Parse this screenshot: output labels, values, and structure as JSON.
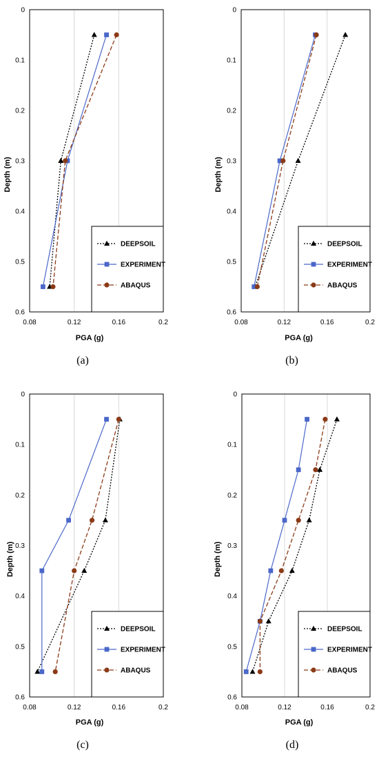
{
  "chart_data": [
    {
      "type": "line",
      "panel": "a",
      "caption": "(a)",
      "xlabel": "PGA (g)",
      "ylabel": "Depth (m)",
      "xlim": [
        0.08,
        0.2
      ],
      "ylim": [
        0,
        0.6
      ],
      "y_inverted": true,
      "x_ticks": [
        0.08,
        0.12,
        0.16,
        0.2
      ],
      "x_tick_labels": [
        "0.08",
        "0.12",
        "0.16",
        "0.2"
      ],
      "y_ticks": [
        0,
        0.1,
        0.2,
        0.3,
        0.4,
        0.5,
        0.6
      ],
      "y_tick_labels": [
        "0",
        "0.1",
        "0.2",
        "0.3",
        "0.4",
        "0.5",
        "0.6"
      ],
      "grid": "vertical",
      "legend_position": "bottom-right",
      "series": [
        {
          "name": "DEEPSOIL",
          "color": "#000000",
          "marker": "triangle",
          "dash": "dotted",
          "points": [
            [
              0.138,
              0.05
            ],
            [
              0.108,
              0.3
            ],
            [
              0.098,
              0.55
            ]
          ]
        },
        {
          "name": "EXPERIMENT",
          "color": "#4a67c9",
          "marker": "square",
          "dash": "solid",
          "points": [
            [
              0.149,
              0.05
            ],
            [
              0.114,
              0.3
            ],
            [
              0.092,
              0.55
            ]
          ]
        },
        {
          "name": "ABAQUS",
          "color": "#8b3a17",
          "marker": "circle",
          "dash": "dashed",
          "points": [
            [
              0.158,
              0.05
            ],
            [
              0.112,
              0.3
            ],
            [
              0.101,
              0.55
            ]
          ]
        }
      ]
    },
    {
      "type": "line",
      "panel": "b",
      "caption": "(b)",
      "xlabel": "PGA (g)",
      "ylabel": "Depth (m)",
      "xlim": [
        0.08,
        0.2
      ],
      "ylim": [
        0,
        0.6
      ],
      "y_inverted": true,
      "x_ticks": [
        0.08,
        0.12,
        0.16,
        0.2
      ],
      "x_tick_labels": [
        "0.08",
        "0.12",
        "0.16",
        "0.2"
      ],
      "y_ticks": [
        0,
        0.1,
        0.2,
        0.3,
        0.4,
        0.5,
        0.6
      ],
      "y_tick_labels": [
        "0",
        "0.1",
        "0.2",
        "0.3",
        "0.4",
        "0.5",
        "0.6"
      ],
      "grid": "vertical",
      "legend_position": "bottom-right",
      "series": [
        {
          "name": "DEEPSOIL",
          "color": "#000000",
          "marker": "triangle",
          "dash": "dotted",
          "points": [
            [
              0.177,
              0.05
            ],
            [
              0.133,
              0.3
            ],
            [
              0.093,
              0.55
            ]
          ]
        },
        {
          "name": "EXPERIMENT",
          "color": "#4a67c9",
          "marker": "square",
          "dash": "solid",
          "points": [
            [
              0.149,
              0.05
            ],
            [
              0.116,
              0.3
            ],
            [
              0.092,
              0.55
            ]
          ]
        },
        {
          "name": "ABAQUS",
          "color": "#8b3a17",
          "marker": "circle",
          "dash": "dashed",
          "points": [
            [
              0.15,
              0.05
            ],
            [
              0.119,
              0.3
            ],
            [
              0.095,
              0.55
            ]
          ]
        }
      ]
    },
    {
      "type": "line",
      "panel": "c",
      "caption": "(c)",
      "xlabel": "PGA (g)",
      "ylabel": "Depth (m)",
      "xlim": [
        0.08,
        0.2
      ],
      "ylim": [
        0,
        0.6
      ],
      "y_inverted": true,
      "x_ticks": [
        0.08,
        0.12,
        0.16,
        0.2
      ],
      "x_tick_labels": [
        "0.08",
        "0.12",
        "0.16",
        "0.2"
      ],
      "y_ticks": [
        0,
        0.1,
        0.2,
        0.3,
        0.4,
        0.5,
        0.6
      ],
      "y_tick_labels": [
        "0",
        "0.1",
        "0.2",
        "0.3",
        "0.4",
        "0.5",
        "0.6"
      ],
      "grid": "vertical",
      "legend_position": "bottom-right",
      "series": [
        {
          "name": "DEEPSOIL",
          "color": "#000000",
          "marker": "triangle",
          "dash": "dotted",
          "points": [
            [
              0.161,
              0.05
            ],
            [
              0.148,
              0.25
            ],
            [
              0.129,
              0.35
            ],
            [
              0.087,
              0.55
            ]
          ]
        },
        {
          "name": "EXPERIMENT",
          "color": "#4a67c9",
          "marker": "square",
          "dash": "solid",
          "points": [
            [
              0.149,
              0.05
            ],
            [
              0.115,
              0.25
            ],
            [
              0.091,
              0.35
            ],
            [
              0.091,
              0.55
            ]
          ]
        },
        {
          "name": "ABAQUS",
          "color": "#8b3a17",
          "marker": "circle",
          "dash": "dashed",
          "points": [
            [
              0.16,
              0.05
            ],
            [
              0.136,
              0.25
            ],
            [
              0.12,
              0.35
            ],
            [
              0.103,
              0.55
            ]
          ]
        }
      ]
    },
    {
      "type": "line",
      "panel": "d",
      "caption": "(d)",
      "xlabel": "PGA (g)",
      "ylabel": "Depth (m)",
      "xlim": [
        0.08,
        0.2
      ],
      "ylim": [
        0,
        0.6
      ],
      "y_inverted": true,
      "x_ticks": [
        0.08,
        0.12,
        0.16,
        0.2
      ],
      "x_tick_labels": [
        "0.08",
        "0.12",
        "0.16",
        "0.2"
      ],
      "y_ticks": [
        0,
        0.1,
        0.2,
        0.3,
        0.4,
        0.5,
        0.6
      ],
      "y_tick_labels": [
        "0",
        "0.1",
        "0.2",
        "0.3",
        "0.4",
        "0.5",
        "0.6"
      ],
      "grid": "vertical",
      "legend_position": "bottom-right",
      "series": [
        {
          "name": "DEEPSOIL",
          "color": "#000000",
          "marker": "triangle",
          "dash": "dotted",
          "points": [
            [
              0.169,
              0.05
            ],
            [
              0.153,
              0.15
            ],
            [
              0.143,
              0.25
            ],
            [
              0.127,
              0.35
            ],
            [
              0.105,
              0.45
            ],
            [
              0.09,
              0.55
            ]
          ]
        },
        {
          "name": "EXPERIMENT",
          "color": "#4a67c9",
          "marker": "square",
          "dash": "solid",
          "points": [
            [
              0.141,
              0.05
            ],
            [
              0.133,
              0.15
            ],
            [
              0.12,
              0.25
            ],
            [
              0.107,
              0.35
            ],
            [
              0.097,
              0.45
            ],
            [
              0.084,
              0.55
            ]
          ]
        },
        {
          "name": "ABAQUS",
          "color": "#8b3a17",
          "marker": "circle",
          "dash": "dashed",
          "points": [
            [
              0.158,
              0.05
            ],
            [
              0.149,
              0.15
            ],
            [
              0.133,
              0.25
            ],
            [
              0.117,
              0.35
            ],
            [
              0.097,
              0.45
            ],
            [
              0.097,
              0.55
            ]
          ]
        }
      ]
    }
  ]
}
